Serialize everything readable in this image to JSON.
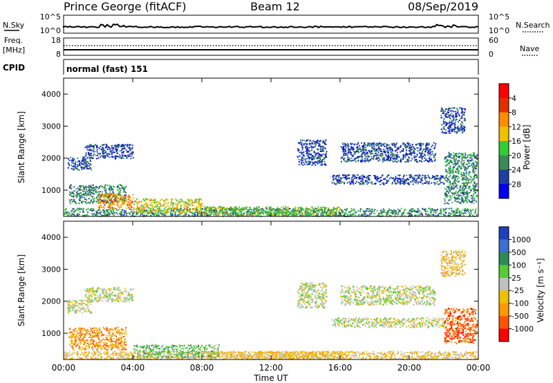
{
  "header": {
    "station": "Prince George (fitACF)",
    "beam": "Beam 12",
    "date": "08/Sep/2019"
  },
  "top_panels": {
    "nsky_label": "N.Sky",
    "nsky_ticks": [
      "10^5",
      "10^0"
    ],
    "nsearch_label": "N.Search",
    "nsearch_ticks": [
      "10^5",
      "10^0"
    ],
    "freq_label": "Freq.",
    "freq_unit": "[MHz]",
    "freq_ticks": [
      "18",
      "8"
    ],
    "nave_label": "Nave",
    "nave_ticks": [
      "60",
      "0"
    ],
    "cpid_label": "CPID",
    "cpid_value": "normal (fast) 151"
  },
  "chart_data": [
    {
      "type": "heatmap",
      "panel": "power",
      "ylabel": "Slant Range [km]",
      "ylim": [
        180,
        4500
      ],
      "yticks": [
        "1000",
        "2000",
        "3000",
        "4000"
      ],
      "xlim": [
        0,
        24
      ],
      "colorbar_label": "Power [dB]",
      "colorbar_ticks": [
        "4",
        "8",
        "12",
        "16",
        "20",
        "24",
        "28"
      ],
      "colors": [
        "#0000ee",
        "#1f3f9f",
        "#3a8a5a",
        "#33cc33",
        "#f0c000",
        "#ff8c00",
        "#e03000",
        "#ff0000"
      ],
      "regions": [
        {
          "t": [
            0.0,
            23.9
          ],
          "r": [
            200,
            450
          ],
          "level": 2
        },
        {
          "t": [
            0.2,
            1.6
          ],
          "r": [
            1650,
            2050
          ],
          "level": 1
        },
        {
          "t": [
            1.2,
            4.0
          ],
          "r": [
            2000,
            2450
          ],
          "level": 1
        },
        {
          "t": [
            0.3,
            3.6
          ],
          "r": [
            600,
            1200
          ],
          "level": 2
        },
        {
          "t": [
            2.0,
            4.0
          ],
          "r": [
            450,
            900
          ],
          "level": 5
        },
        {
          "t": [
            4.0,
            8.0
          ],
          "r": [
            300,
            750
          ],
          "level": 4
        },
        {
          "t": [
            8.0,
            16.0
          ],
          "r": [
            220,
            500
          ],
          "level": 3
        },
        {
          "t": [
            13.5,
            15.2
          ],
          "r": [
            1800,
            2600
          ],
          "level": 1
        },
        {
          "t": [
            15.5,
            22.0
          ],
          "r": [
            1200,
            1500
          ],
          "level": 1
        },
        {
          "t": [
            16.0,
            21.5
          ],
          "r": [
            1900,
            2500
          ],
          "level": 1
        },
        {
          "t": [
            22.0,
            23.9
          ],
          "r": [
            600,
            2200
          ],
          "level": 2
        },
        {
          "t": [
            21.8,
            23.2
          ],
          "r": [
            2800,
            3600
          ],
          "level": 1
        }
      ]
    },
    {
      "type": "heatmap",
      "panel": "velocity",
      "ylabel": "Slant Range [km]",
      "ylim": [
        180,
        4500
      ],
      "yticks": [
        "1000",
        "2000",
        "3000",
        "4000"
      ],
      "xlabel": "Time UT",
      "xlim": [
        0,
        24
      ],
      "xticks": [
        "00:00",
        "04:00",
        "08:00",
        "12:00",
        "16:00",
        "20:00",
        "00:00"
      ],
      "colorbar_label": "Velocity [m s⁻¹]",
      "colorbar_ticks": [
        "1000",
        "500",
        "100",
        "25",
        "-25",
        "-100",
        "-500",
        "-1000"
      ],
      "colors": [
        "#1f3fbf",
        "#3d6fd0",
        "#2e8b57",
        "#55cc33",
        "#c0c0c0",
        "#f0c000",
        "#ff9900",
        "#ff5500",
        "#ff0000"
      ],
      "regions": [
        {
          "t": [
            0.0,
            23.9
          ],
          "r": [
            200,
            450
          ],
          "level": 5
        },
        {
          "t": [
            0.2,
            1.6
          ],
          "r": [
            1650,
            2050
          ],
          "level": 4
        },
        {
          "t": [
            1.2,
            4.0
          ],
          "r": [
            2000,
            2450
          ],
          "level": 4
        },
        {
          "t": [
            0.3,
            3.6
          ],
          "r": [
            500,
            1200
          ],
          "level": 6
        },
        {
          "t": [
            4.0,
            9.0
          ],
          "r": [
            250,
            650
          ],
          "level": 3
        },
        {
          "t": [
            9.0,
            16.0
          ],
          "r": [
            220,
            450
          ],
          "level": 5
        },
        {
          "t": [
            13.5,
            15.2
          ],
          "r": [
            1800,
            2600
          ],
          "level": 4
        },
        {
          "t": [
            15.5,
            22.0
          ],
          "r": [
            1200,
            1500
          ],
          "level": 4
        },
        {
          "t": [
            16.0,
            21.5
          ],
          "r": [
            1900,
            2500
          ],
          "level": 4
        },
        {
          "t": [
            22.0,
            23.9
          ],
          "r": [
            700,
            1800
          ],
          "level": 7
        },
        {
          "t": [
            21.8,
            23.2
          ],
          "r": [
            2800,
            3600
          ],
          "level": 5
        }
      ]
    }
  ]
}
